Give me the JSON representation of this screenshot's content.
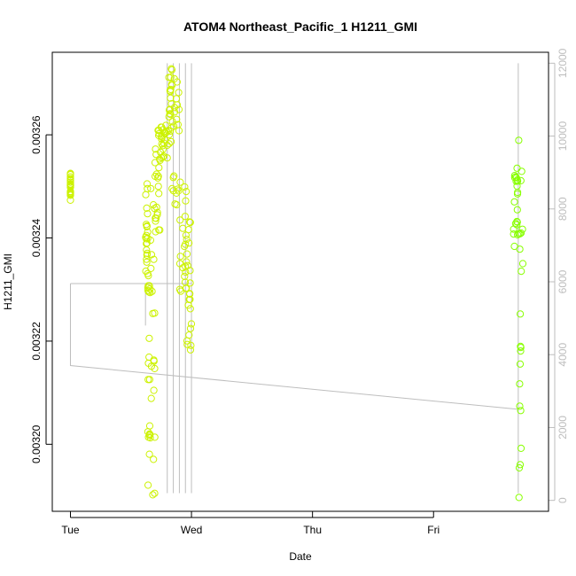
{
  "chart_data": {
    "type": "scatter",
    "title": "ATOM4 Northeast_Pacific_1 H1211_GMI",
    "xlabel": "Date",
    "ylabel": "H1211_GMI",
    "x_ticks": [
      "Tue",
      "Wed",
      "Thu",
      "Fri"
    ],
    "xlim_days": [
      -0.15,
      3.95
    ],
    "ylim": [
      0.003187,
      0.003276
    ],
    "y_ticks": [
      0.0032,
      0.00322,
      0.00324,
      0.00326
    ],
    "y_tick_labels": [
      "0.00320",
      "0.00322",
      "0.00324",
      "0.00326"
    ],
    "y2lim": [
      -300,
      12300
    ],
    "y2_ticks": [
      0,
      2000,
      4000,
      6000,
      8000,
      10000,
      12000
    ],
    "y2_tick_labels": [
      "0",
      "2000",
      "4000",
      "6000",
      "8000",
      "10000",
      "12000"
    ],
    "grid": false,
    "colors": {
      "early": "#ccf200",
      "late": "#88ff00",
      "line": "#bebebe",
      "axis2": "#bdbdbd"
    },
    "path_series": {
      "name": "",
      "color": "#bebebe",
      "points": [
        [
          0.0,
          5950
        ],
        [
          0.0,
          3700
        ],
        [
          3.7,
          2500
        ],
        [
          3.7,
          12000
        ],
        [
          3.68,
          12000
        ],
        [
          3.68,
          200
        ],
        [
          3.7,
          200
        ]
      ],
      "return_to_x": 0.0,
      "return_y2": 5950,
      "wed_spikes": [
        0.8,
        0.85,
        0.9,
        0.95,
        1.0
      ],
      "wed_start": 0.62,
      "wed_end": 1.0
    },
    "series": [
      {
        "name": "",
        "segments": [
          {
            "x": [
              0.0,
              0.0
            ],
            "y": [
              0.003247,
              0.003253
            ]
          },
          {
            "x": [
              0.62,
              0.64
            ],
            "y": [
              0.003232,
              0.003252
            ]
          },
          {
            "x": [
              0.64,
              0.66
            ],
            "y": [
              0.003192,
              0.003234
            ]
          },
          {
            "x": [
              0.66,
              0.7
            ],
            "y": [
              0.003188,
              0.003255
            ]
          },
          {
            "x": [
              0.7,
              0.74
            ],
            "y": [
              0.003241,
              0.003262
            ]
          },
          {
            "x": [
              0.74,
              0.8
            ],
            "y": [
              0.003255,
              0.003262
            ]
          },
          {
            "x": [
              0.8,
              0.84
            ],
            "y": [
              0.003257,
              0.003273
            ]
          },
          {
            "x": [
              0.84,
              0.9
            ],
            "y": [
              0.003246,
              0.003273
            ]
          },
          {
            "x": [
              0.9,
              0.96
            ],
            "y": [
              0.003229,
              0.003252
            ]
          },
          {
            "x": [
              0.96,
              1.0
            ],
            "y": [
              0.003218,
              0.003244
            ]
          },
          {
            "x": [
              3.66,
              3.7
            ],
            "y": [
              0.003238,
              0.003254
            ]
          },
          {
            "x": [
              3.7,
              3.74
            ],
            "y": [
              0.003185,
              0.003273
            ]
          }
        ]
      }
    ]
  }
}
